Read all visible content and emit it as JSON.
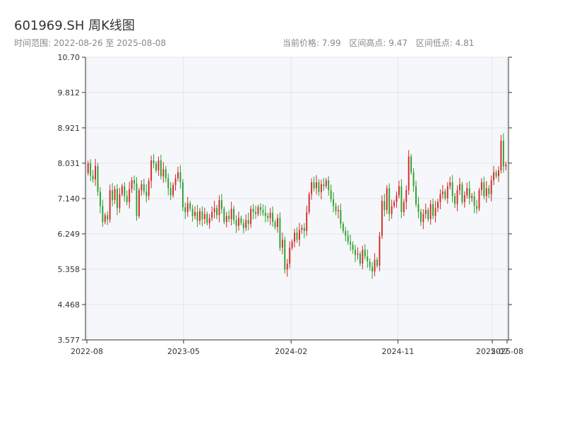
{
  "header": {
    "title": "601969.SH 周K线图",
    "range_label": "时间范围: 2022-08-26 至 2025-08-08",
    "current_price_label": "当前价格: 7.99",
    "high_label": "区间高点: 9.47",
    "low_label": "区间低点: 4.81"
  },
  "colors": {
    "up": "#d62728",
    "down": "#2ca02c",
    "plot_bg": "#f5f7fa",
    "grid": "#e3e6ea",
    "axis": "#333333"
  },
  "chart_data": {
    "type": "candlestick",
    "title": "601969.SH 周K线图",
    "frequency": "weekly",
    "start_date": "2022-08-26",
    "end_date": "2025-08-08",
    "ylim": [
      3.577,
      10.7
    ],
    "y_ticks": [
      "3.577",
      "4.468",
      "5.358",
      "6.249",
      "7.140",
      "8.031",
      "8.921",
      "9.812",
      "10.70"
    ],
    "x_ticks": [
      {
        "date": "2022-08-26",
        "label": "2022-08"
      },
      {
        "date": "2023-05-01",
        "label": "2023-05"
      },
      {
        "date": "2024-02-01",
        "label": "2024-02"
      },
      {
        "date": "2024-11-01",
        "label": "2024-11"
      },
      {
        "date": "2025-07-01",
        "label": "2025-07"
      },
      {
        "date": "2025-08-08",
        "label": "2025-08"
      }
    ],
    "grid": true,
    "current_price": 7.99,
    "period_high": 9.47,
    "period_low": 4.81,
    "closes": [
      8.03,
      7.72,
      7.62,
      7.96,
      7.31,
      6.95,
      6.55,
      6.72,
      6.61,
      7.35,
      7.1,
      7.38,
      6.9,
      7.25,
      7.45,
      7.2,
      7.05,
      7.38,
      7.6,
      7.52,
      6.7,
      7.35,
      7.5,
      7.32,
      7.2,
      7.58,
      8.1,
      8.02,
      7.85,
      8.1,
      7.7,
      7.88,
      7.65,
      7.4,
      7.22,
      7.48,
      7.65,
      7.8,
      7.55,
      6.92,
      6.8,
      7.02,
      6.88,
      6.7,
      6.8,
      6.58,
      6.82,
      6.62,
      6.75,
      6.52,
      6.65,
      6.8,
      6.9,
      6.72,
      7.1,
      6.88,
      6.55,
      6.7,
      6.62,
      6.88,
      6.6,
      6.45,
      6.65,
      6.52,
      6.4,
      6.6,
      6.5,
      6.88,
      6.8,
      6.75,
      6.92,
      6.85,
      6.78,
      6.7,
      6.65,
      6.78,
      6.55,
      6.42,
      6.65,
      5.9,
      6.1,
      5.35,
      5.5,
      5.9,
      6.05,
      6.28,
      6.1,
      6.35,
      6.4,
      6.32,
      6.8,
      7.25,
      7.55,
      7.4,
      7.55,
      7.3,
      7.5,
      7.45,
      7.6,
      7.35,
      7.12,
      6.95,
      6.82,
      6.85,
      6.5,
      6.32,
      6.2,
      6.05,
      5.98,
      5.85,
      5.72,
      5.75,
      5.5,
      5.85,
      5.68,
      5.55,
      5.42,
      5.3,
      5.6,
      5.45,
      6.2,
      7.08,
      6.85,
      7.4,
      6.75,
      6.95,
      7.05,
      7.22,
      7.45,
      6.8,
      7.05,
      7.35,
      8.2,
      7.8,
      7.45,
      7.0,
      6.8,
      6.55,
      6.75,
      6.85,
      6.62,
      7.0,
      6.7,
      6.9,
      7.05,
      7.25,
      7.32,
      7.15,
      7.45,
      7.55,
      7.2,
      7.0,
      7.35,
      7.5,
      7.05,
      7.22,
      7.4,
      7.15,
      7.2,
      6.95,
      6.88,
      7.35,
      7.55,
      7.2,
      7.4,
      7.25,
      7.6,
      7.8,
      7.7,
      7.85,
      8.6,
      7.95,
      7.99
    ]
  }
}
